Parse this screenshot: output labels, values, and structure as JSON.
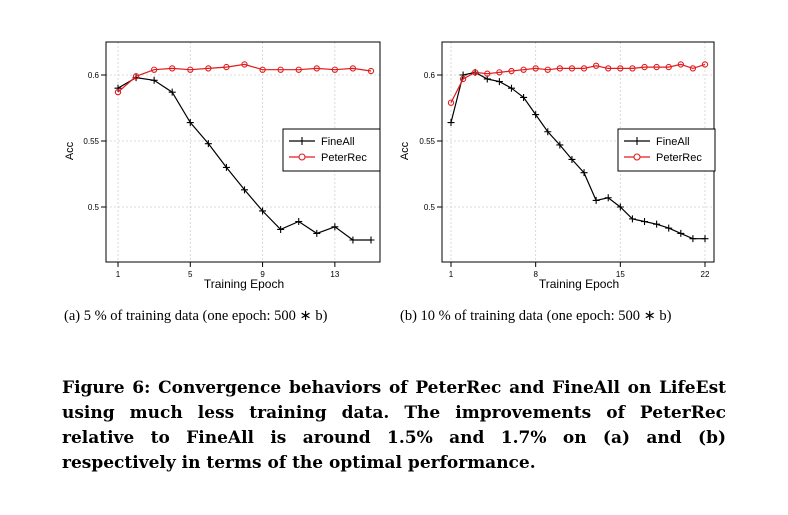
{
  "chart_data": [
    {
      "type": "line",
      "ylabel": "Acc",
      "xlabel": "Training Epoch",
      "xlim": [
        1,
        15
      ],
      "ylim": [
        0.47,
        0.61
      ],
      "xticks": [
        1,
        5,
        9,
        13
      ],
      "yticks": [
        0.5,
        0.55,
        0.6
      ],
      "ytick_labels": [
        "0.5",
        "0.55",
        "0.6"
      ],
      "legend_position": "center-right",
      "series": [
        {
          "name": "FineAll",
          "color": "#000000",
          "marker": "plus",
          "x": [
            1,
            2,
            3,
            4,
            5,
            6,
            7,
            8,
            9,
            10,
            11,
            12,
            13,
            14,
            15
          ],
          "y": [
            0.59,
            0.598,
            0.596,
            0.587,
            0.564,
            0.548,
            0.53,
            0.513,
            0.497,
            0.483,
            0.489,
            0.48,
            0.485,
            0.475,
            0.475
          ]
        },
        {
          "name": "PeterRec",
          "color": "#e31a1c",
          "marker": "circle",
          "x": [
            1,
            2,
            3,
            4,
            5,
            6,
            7,
            8,
            9,
            10,
            11,
            12,
            13,
            14,
            15
          ],
          "y": [
            0.587,
            0.599,
            0.604,
            0.605,
            0.604,
            0.605,
            0.606,
            0.608,
            0.604,
            0.604,
            0.604,
            0.605,
            0.604,
            0.605,
            0.603
          ]
        }
      ]
    },
    {
      "type": "line",
      "ylabel": "Acc",
      "xlabel": "Training Epoch",
      "xlim": [
        1,
        22
      ],
      "ylim": [
        0.47,
        0.61
      ],
      "xticks": [
        1,
        8,
        15,
        22
      ],
      "yticks": [
        0.5,
        0.55,
        0.6
      ],
      "ytick_labels": [
        "0.5",
        "0.55",
        "0.6"
      ],
      "legend_position": "center-right",
      "series": [
        {
          "name": "FineAll",
          "color": "#000000",
          "marker": "plus",
          "x": [
            1,
            2,
            3,
            4,
            5,
            6,
            7,
            8,
            9,
            10,
            11,
            12,
            13,
            14,
            15,
            16,
            17,
            18,
            19,
            20,
            21,
            22
          ],
          "y": [
            0.564,
            0.6,
            0.602,
            0.597,
            0.595,
            0.59,
            0.583,
            0.57,
            0.557,
            0.547,
            0.536,
            0.526,
            0.505,
            0.507,
            0.5,
            0.491,
            0.489,
            0.487,
            0.484,
            0.48,
            0.476,
            0.476
          ]
        },
        {
          "name": "PeterRec",
          "color": "#e31a1c",
          "marker": "circle",
          "x": [
            1,
            2,
            3,
            4,
            5,
            6,
            7,
            8,
            9,
            10,
            11,
            12,
            13,
            14,
            15,
            16,
            17,
            18,
            19,
            20,
            21,
            22
          ],
          "y": [
            0.579,
            0.597,
            0.602,
            0.601,
            0.602,
            0.603,
            0.604,
            0.605,
            0.604,
            0.605,
            0.605,
            0.605,
            0.607,
            0.605,
            0.605,
            0.605,
            0.606,
            0.606,
            0.606,
            0.608,
            0.605,
            0.608
          ]
        }
      ]
    }
  ],
  "captions": {
    "sub_a": "(a)  5 % of training data (one epoch: 500 ∗ b)",
    "sub_b": "(b)  10 % of training data (one epoch: 500 ∗ b)",
    "figure": "Figure 6: Convergence behaviors of PeterRec and FineAll on LifeEst using much less training data. The improvements of PeterRec relative to FineAll is around 1.5% and 1.7% on (a) and (b) respectively in terms of the optimal performance."
  }
}
